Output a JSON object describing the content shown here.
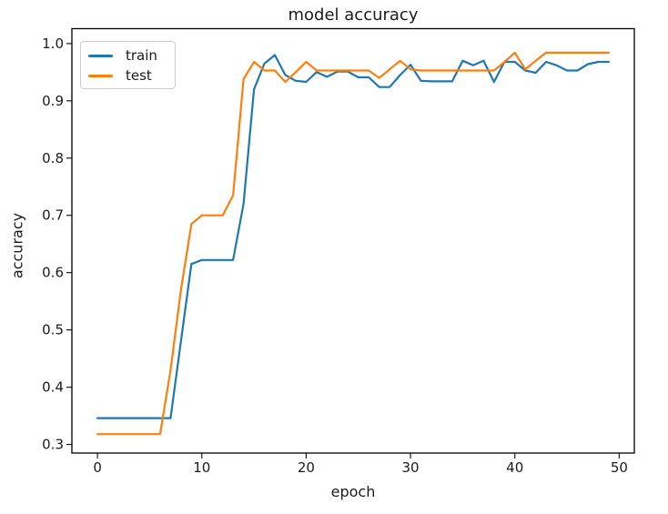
{
  "figure_title": "model accuracy",
  "chart_data": {
    "type": "line",
    "title": "model accuracy",
    "xlabel": "epoch",
    "ylabel": "accuracy",
    "grid": false,
    "legend_position": "upper left",
    "xlim": [
      -2.45,
      51.45
    ],
    "ylim": [
      0.285,
      1.026
    ],
    "xticks": [
      "0",
      "10",
      "20",
      "30",
      "40",
      "50"
    ],
    "yticks": [
      "0.3",
      "0.4",
      "0.5",
      "0.6",
      "0.7",
      "0.8",
      "0.9",
      "1.0"
    ],
    "x": [
      0,
      1,
      2,
      3,
      4,
      5,
      6,
      7,
      8,
      9,
      10,
      11,
      12,
      13,
      14,
      15,
      16,
      17,
      18,
      19,
      20,
      21,
      22,
      23,
      24,
      25,
      26,
      27,
      28,
      29,
      30,
      31,
      32,
      33,
      34,
      35,
      36,
      37,
      38,
      39,
      40,
      41,
      42,
      43,
      44,
      45,
      46,
      47,
      48,
      49
    ],
    "series": [
      {
        "name": "train",
        "color": "#1f77b4",
        "values": [
          0.346,
          0.346,
          0.346,
          0.346,
          0.346,
          0.346,
          0.346,
          0.346,
          0.48,
          0.615,
          0.622,
          0.622,
          0.622,
          0.622,
          0.72,
          0.92,
          0.965,
          0.98,
          0.945,
          0.935,
          0.933,
          0.95,
          0.942,
          0.951,
          0.951,
          0.941,
          0.941,
          0.924,
          0.924,
          0.945,
          0.963,
          0.935,
          0.934,
          0.934,
          0.934,
          0.97,
          0.962,
          0.97,
          0.933,
          0.968,
          0.968,
          0.953,
          0.949,
          0.968,
          0.962,
          0.953,
          0.953,
          0.964,
          0.968,
          0.968
        ]
      },
      {
        "name": "test",
        "color": "#ff7f0e",
        "values": [
          0.318,
          0.318,
          0.318,
          0.318,
          0.318,
          0.318,
          0.318,
          0.43,
          0.57,
          0.685,
          0.7,
          0.7,
          0.7,
          0.735,
          0.938,
          0.968,
          0.953,
          0.953,
          0.933,
          0.95,
          0.968,
          0.953,
          0.953,
          0.953,
          0.953,
          0.953,
          0.953,
          0.94,
          0.955,
          0.97,
          0.955,
          0.953,
          0.953,
          0.953,
          0.953,
          0.953,
          0.953,
          0.953,
          0.953,
          0.968,
          0.984,
          0.955,
          0.97,
          0.984,
          0.984,
          0.984,
          0.984,
          0.984,
          0.984,
          0.984
        ]
      }
    ]
  }
}
